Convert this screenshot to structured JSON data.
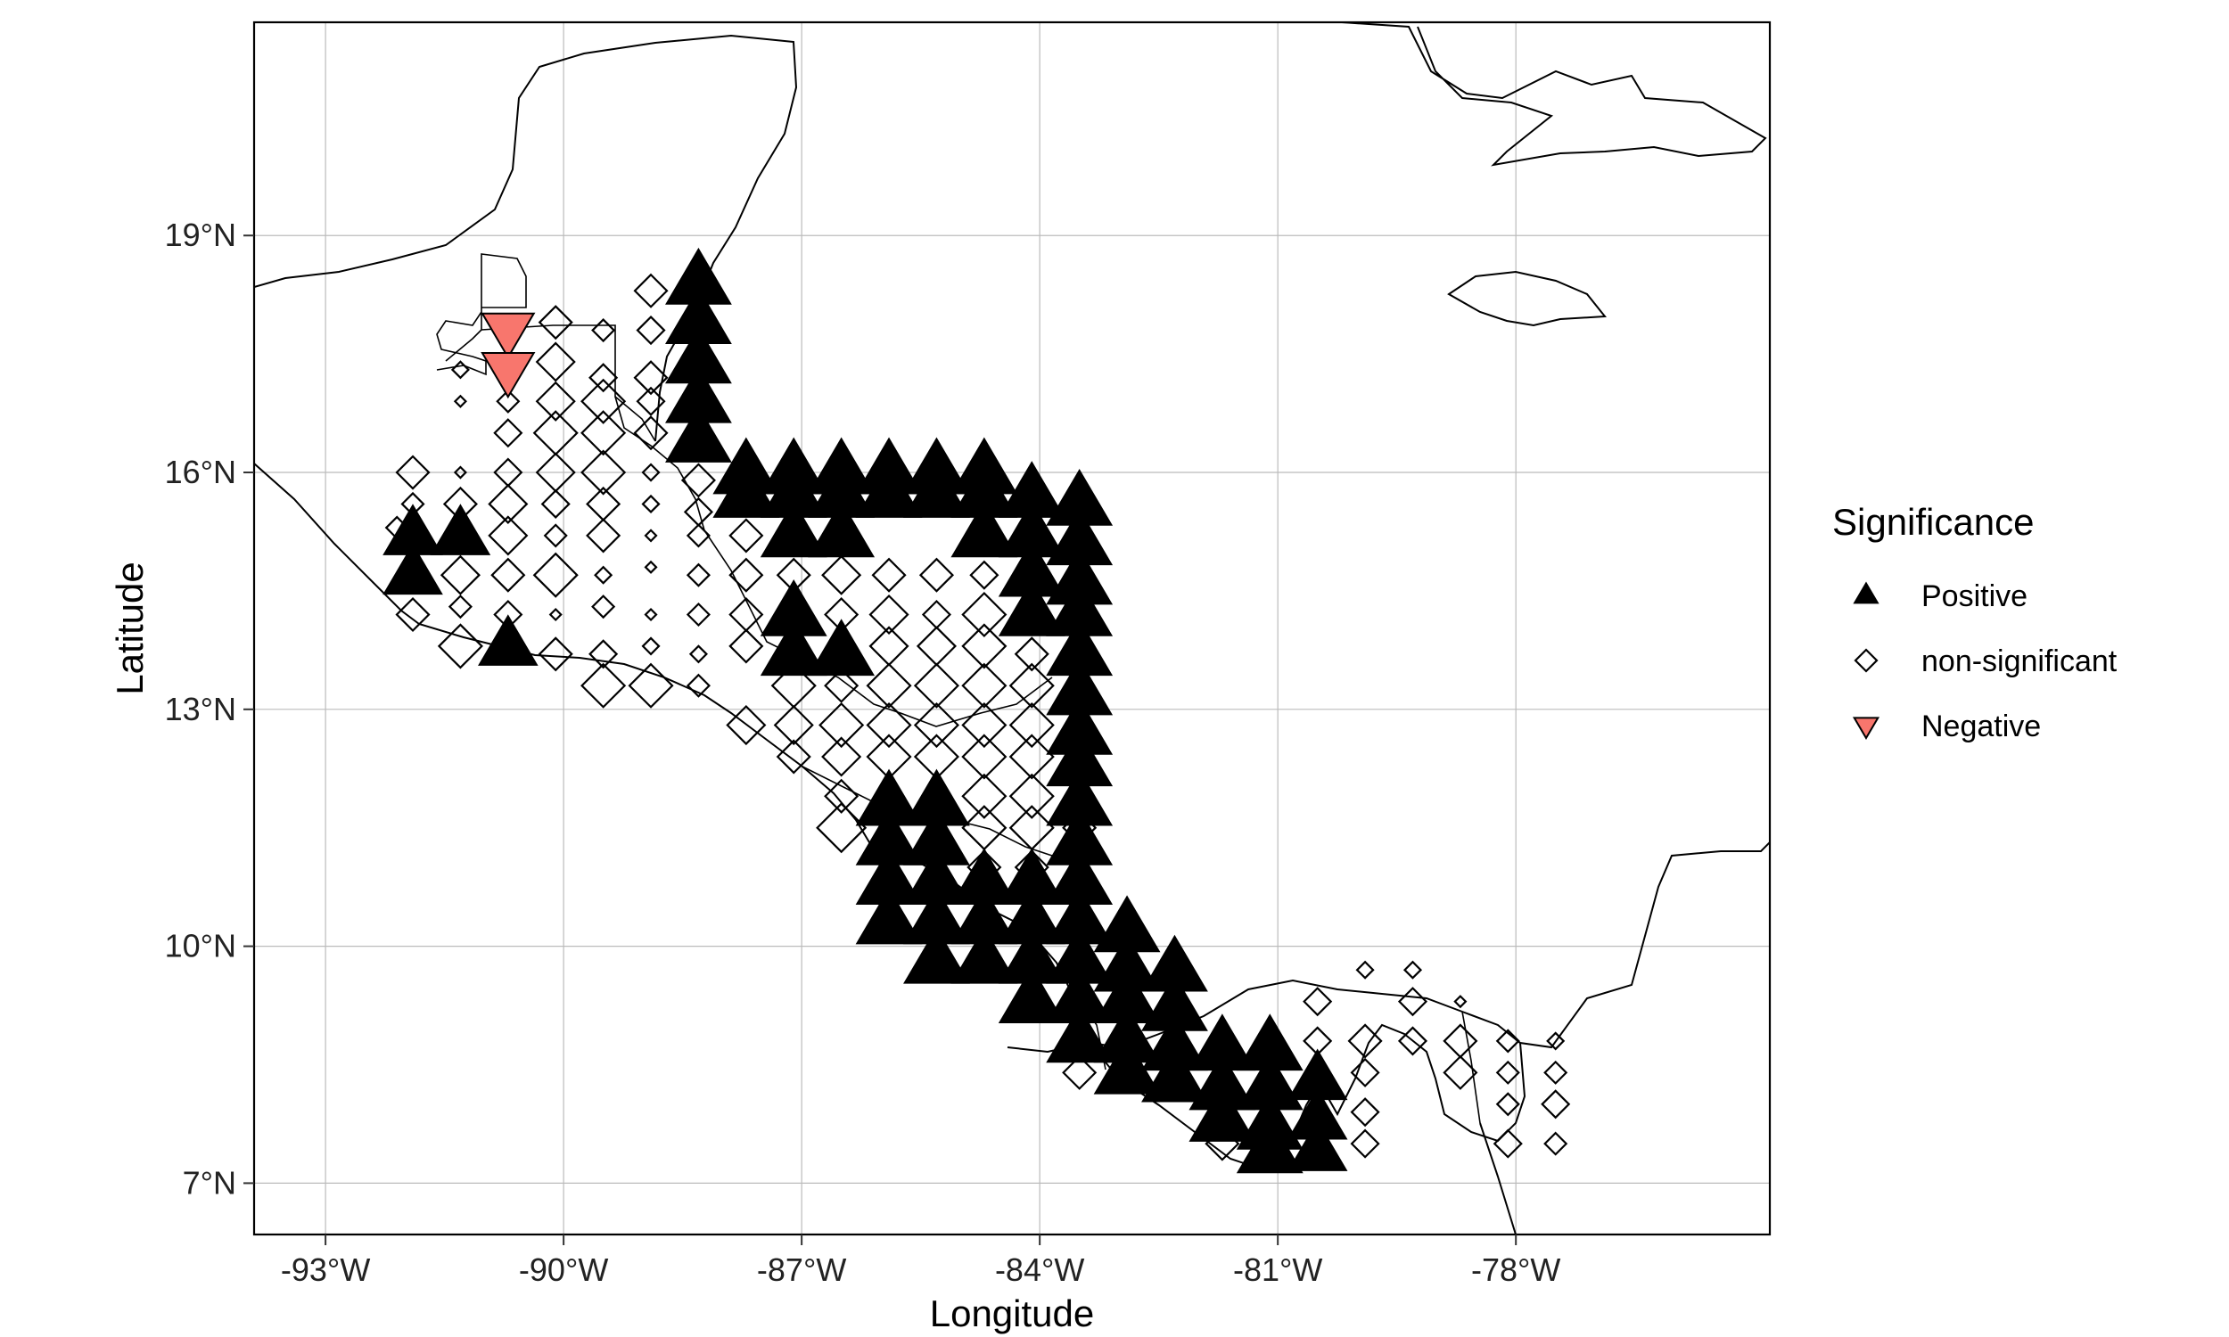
{
  "chart_data": {
    "type": "scatter",
    "xlabel": "Longitude",
    "ylabel": "Latitude",
    "xlim": [
      -93.9,
      -74.8
    ],
    "ylim": [
      6.35,
      21.7
    ],
    "grid": true,
    "x_ticks": [
      {
        "value": -93,
        "label": "-93°W"
      },
      {
        "value": -90,
        "label": "-90°W"
      },
      {
        "value": -87,
        "label": "-87°W"
      },
      {
        "value": -84,
        "label": "-84°W"
      },
      {
        "value": -81,
        "label": "-81°W"
      },
      {
        "value": -78,
        "label": "-78°W"
      }
    ],
    "y_ticks": [
      {
        "value": 7,
        "label": "7°N"
      },
      {
        "value": 10,
        "label": "10°N"
      },
      {
        "value": 13,
        "label": "13°N"
      },
      {
        "value": 16,
        "label": "16°N"
      },
      {
        "value": 19,
        "label": "19°N"
      }
    ],
    "legend": {
      "title": "Significance",
      "position": "right",
      "entries": [
        {
          "key": "positive",
          "label": "Positive",
          "shape": "triangle-up",
          "fill": "#000000"
        },
        {
          "key": "non_significant",
          "label": "non-significant",
          "shape": "diamond-open",
          "fill": "none"
        },
        {
          "key": "negative",
          "label": "Negative",
          "shape": "triangle-down",
          "fill": "#f8766d"
        }
      ]
    },
    "colors": {
      "positive": "#000000",
      "negative": "#f8766d",
      "non_significant_stroke": "#000000",
      "coastline": "#000000",
      "grid": "#bbbbbb"
    },
    "series": [
      {
        "key": "positive",
        "points": [
          [
            -88.3,
            18.4,
            1
          ],
          [
            -88.3,
            17.9,
            1
          ],
          [
            -88.3,
            17.4,
            1
          ],
          [
            -88.3,
            16.9,
            1
          ],
          [
            -88.3,
            16.4,
            1
          ],
          [
            -87.7,
            16.0,
            1
          ],
          [
            -87.7,
            15.7,
            1
          ],
          [
            -87.1,
            16.0,
            1
          ],
          [
            -87.1,
            15.7,
            1
          ],
          [
            -87.1,
            15.2,
            1
          ],
          [
            -86.5,
            16.0,
            1
          ],
          [
            -86.5,
            15.7,
            1
          ],
          [
            -86.5,
            15.2,
            1
          ],
          [
            -85.9,
            16.0,
            1
          ],
          [
            -85.9,
            15.7,
            1
          ],
          [
            -85.3,
            16.0,
            1
          ],
          [
            -85.3,
            15.7,
            1
          ],
          [
            -84.7,
            16.0,
            1
          ],
          [
            -84.7,
            15.7,
            1
          ],
          [
            -84.7,
            15.2,
            1
          ],
          [
            -84.1,
            15.7,
            1
          ],
          [
            -84.1,
            15.2,
            1
          ],
          [
            -84.1,
            14.7,
            1
          ],
          [
            -84.1,
            14.2,
            1
          ],
          [
            -83.5,
            15.6,
            1
          ],
          [
            -83.5,
            15.1,
            1
          ],
          [
            -83.5,
            14.6,
            1
          ],
          [
            -83.5,
            14.2,
            1
          ],
          [
            -83.5,
            13.7,
            1
          ],
          [
            -83.5,
            13.2,
            1
          ],
          [
            -83.5,
            12.7,
            1
          ],
          [
            -83.5,
            12.3,
            1
          ],
          [
            -83.5,
            11.8,
            1
          ],
          [
            -87.1,
            14.2,
            1
          ],
          [
            -87.1,
            13.7,
            1
          ],
          [
            -86.5,
            13.7,
            1
          ],
          [
            -91.9,
            15.2,
            0.9
          ],
          [
            -91.9,
            14.7,
            0.9
          ],
          [
            -91.3,
            15.2,
            0.9
          ],
          [
            -90.7,
            13.8,
            0.9
          ],
          [
            -85.9,
            11.8,
            1
          ],
          [
            -85.9,
            11.3,
            1
          ],
          [
            -85.9,
            10.8,
            1
          ],
          [
            -85.9,
            10.3,
            1
          ],
          [
            -85.3,
            11.8,
            1
          ],
          [
            -85.3,
            11.3,
            1
          ],
          [
            -85.3,
            10.8,
            1
          ],
          [
            -85.3,
            10.3,
            1
          ],
          [
            -85.3,
            9.8,
            1
          ],
          [
            -84.7,
            10.8,
            1
          ],
          [
            -84.7,
            10.3,
            1
          ],
          [
            -84.7,
            9.8,
            1
          ],
          [
            -84.1,
            10.8,
            1
          ],
          [
            -84.1,
            10.3,
            1
          ],
          [
            -84.1,
            9.8,
            1
          ],
          [
            -84.1,
            9.3,
            1
          ],
          [
            -83.5,
            11.3,
            1
          ],
          [
            -83.5,
            10.8,
            1
          ],
          [
            -83.5,
            10.3,
            1
          ],
          [
            -83.5,
            9.8,
            1
          ],
          [
            -83.5,
            9.3,
            1
          ],
          [
            -83.5,
            8.8,
            1
          ],
          [
            -82.9,
            10.2,
            1
          ],
          [
            -82.9,
            9.7,
            1
          ],
          [
            -82.9,
            9.3,
            1
          ],
          [
            -82.9,
            8.8,
            1
          ],
          [
            -82.9,
            8.4,
            1
          ],
          [
            -82.3,
            9.7,
            1
          ],
          [
            -82.3,
            9.2,
            1
          ],
          [
            -82.3,
            8.7,
            1
          ],
          [
            -82.3,
            8.3,
            1
          ],
          [
            -81.7,
            8.7,
            1
          ],
          [
            -81.7,
            8.2,
            1
          ],
          [
            -81.7,
            7.8,
            1
          ],
          [
            -81.1,
            8.7,
            1
          ],
          [
            -81.1,
            8.2,
            1
          ],
          [
            -81.1,
            7.7,
            1
          ],
          [
            -81.1,
            7.4,
            1
          ],
          [
            -80.5,
            8.3,
            0.9
          ],
          [
            -80.5,
            7.8,
            0.9
          ],
          [
            -80.5,
            7.4,
            0.9
          ]
        ]
      },
      {
        "key": "negative",
        "points": [
          [
            -90.7,
            17.8,
            0.8
          ],
          [
            -90.7,
            17.3,
            0.8
          ]
        ]
      },
      {
        "key": "non_significant",
        "points": [
          [
            -88.9,
            18.3,
            0.6
          ],
          [
            -90.1,
            17.9,
            0.6
          ],
          [
            -89.5,
            17.8,
            0.4
          ],
          [
            -88.9,
            17.8,
            0.5
          ],
          [
            -91.3,
            17.3,
            0.3
          ],
          [
            -90.7,
            17.3,
            0.4
          ],
          [
            -90.1,
            17.4,
            0.7
          ],
          [
            -89.5,
            17.2,
            0.5
          ],
          [
            -88.9,
            17.2,
            0.6
          ],
          [
            -91.3,
            16.9,
            0.2
          ],
          [
            -90.7,
            16.9,
            0.4
          ],
          [
            -90.1,
            16.9,
            0.7
          ],
          [
            -89.5,
            16.9,
            0.8
          ],
          [
            -88.9,
            16.9,
            0.5
          ],
          [
            -90.7,
            16.5,
            0.5
          ],
          [
            -90.1,
            16.5,
            0.8
          ],
          [
            -89.5,
            16.5,
            0.8
          ],
          [
            -88.9,
            16.5,
            0.6
          ],
          [
            -91.9,
            16.0,
            0.6
          ],
          [
            -91.3,
            16.0,
            0.2
          ],
          [
            -90.7,
            16.0,
            0.5
          ],
          [
            -90.1,
            16.0,
            0.7
          ],
          [
            -89.5,
            16.0,
            0.8
          ],
          [
            -88.9,
            16.0,
            0.3
          ],
          [
            -88.3,
            15.9,
            0.6
          ],
          [
            -91.9,
            15.6,
            0.4
          ],
          [
            -91.3,
            15.6,
            0.6
          ],
          [
            -90.7,
            15.6,
            0.7
          ],
          [
            -90.1,
            15.6,
            0.5
          ],
          [
            -89.5,
            15.6,
            0.6
          ],
          [
            -88.9,
            15.6,
            0.3
          ],
          [
            -88.3,
            15.5,
            0.5
          ],
          [
            -92.1,
            15.3,
            0.4
          ],
          [
            -91.3,
            15.2,
            0.4
          ],
          [
            -90.7,
            15.2,
            0.7
          ],
          [
            -90.1,
            15.2,
            0.4
          ],
          [
            -89.5,
            15.2,
            0.6
          ],
          [
            -88.9,
            15.2,
            0.2
          ],
          [
            -88.3,
            15.2,
            0.4
          ],
          [
            -87.7,
            15.2,
            0.6
          ],
          [
            -91.3,
            14.7,
            0.7
          ],
          [
            -90.7,
            14.7,
            0.6
          ],
          [
            -90.1,
            14.7,
            0.8
          ],
          [
            -89.5,
            14.7,
            0.3
          ],
          [
            -88.9,
            14.8,
            0.2
          ],
          [
            -88.3,
            14.7,
            0.4
          ],
          [
            -87.7,
            14.7,
            0.6
          ],
          [
            -87.1,
            14.7,
            0.6
          ],
          [
            -86.5,
            14.7,
            0.7
          ],
          [
            -85.9,
            14.7,
            0.6
          ],
          [
            -85.3,
            14.7,
            0.6
          ],
          [
            -84.7,
            14.7,
            0.5
          ],
          [
            -91.9,
            14.2,
            0.6
          ],
          [
            -91.3,
            14.3,
            0.4
          ],
          [
            -90.7,
            14.2,
            0.5
          ],
          [
            -90.1,
            14.2,
            0.2
          ],
          [
            -89.5,
            14.3,
            0.4
          ],
          [
            -88.9,
            14.2,
            0.2
          ],
          [
            -88.3,
            14.2,
            0.4
          ],
          [
            -87.7,
            14.2,
            0.6
          ],
          [
            -86.5,
            14.2,
            0.6
          ],
          [
            -85.9,
            14.2,
            0.7
          ],
          [
            -85.3,
            14.2,
            0.5
          ],
          [
            -84.7,
            14.2,
            0.8
          ],
          [
            -91.3,
            13.8,
            0.8
          ],
          [
            -90.1,
            13.7,
            0.6
          ],
          [
            -89.5,
            13.7,
            0.5
          ],
          [
            -88.9,
            13.8,
            0.3
          ],
          [
            -88.3,
            13.7,
            0.3
          ],
          [
            -87.7,
            13.8,
            0.6
          ],
          [
            -85.9,
            13.8,
            0.7
          ],
          [
            -85.3,
            13.8,
            0.7
          ],
          [
            -84.7,
            13.8,
            0.8
          ],
          [
            -84.1,
            13.7,
            0.6
          ],
          [
            -89.5,
            13.3,
            0.8
          ],
          [
            -88.9,
            13.3,
            0.8
          ],
          [
            -88.3,
            13.3,
            0.4
          ],
          [
            -87.1,
            13.3,
            0.8
          ],
          [
            -86.5,
            13.3,
            0.6
          ],
          [
            -85.9,
            13.3,
            0.8
          ],
          [
            -85.3,
            13.3,
            0.8
          ],
          [
            -84.7,
            13.3,
            0.8
          ],
          [
            -84.1,
            13.3,
            0.8
          ],
          [
            -87.7,
            12.8,
            0.7
          ],
          [
            -87.1,
            12.8,
            0.7
          ],
          [
            -86.5,
            12.8,
            0.8
          ],
          [
            -85.9,
            12.8,
            0.8
          ],
          [
            -85.3,
            12.8,
            0.8
          ],
          [
            -84.7,
            12.8,
            0.8
          ],
          [
            -84.1,
            12.8,
            0.8
          ],
          [
            -87.1,
            12.4,
            0.6
          ],
          [
            -86.5,
            12.4,
            0.7
          ],
          [
            -85.9,
            12.4,
            0.8
          ],
          [
            -85.3,
            12.4,
            0.8
          ],
          [
            -84.7,
            12.4,
            0.8
          ],
          [
            -84.1,
            12.4,
            0.8
          ],
          [
            -86.5,
            11.9,
            0.6
          ],
          [
            -84.7,
            11.9,
            0.8
          ],
          [
            -84.1,
            11.9,
            0.8
          ],
          [
            -86.5,
            11.5,
            0.9
          ],
          [
            -84.7,
            11.5,
            0.8
          ],
          [
            -84.1,
            11.5,
            0.8
          ],
          [
            -83.5,
            11.5,
            0.6
          ],
          [
            -84.7,
            11.0,
            0.6
          ],
          [
            -84.1,
            11.0,
            0.6
          ],
          [
            -83.5,
            8.4,
            0.6
          ],
          [
            -80.5,
            9.3,
            0.5
          ],
          [
            -79.9,
            9.7,
            0.3
          ],
          [
            -79.3,
            9.7,
            0.3
          ],
          [
            -80.5,
            8.8,
            0.5
          ],
          [
            -79.9,
            8.8,
            0.6
          ],
          [
            -79.3,
            9.3,
            0.5
          ],
          [
            -78.7,
            9.3,
            0.2
          ],
          [
            -79.9,
            8.4,
            0.5
          ],
          [
            -79.3,
            8.8,
            0.5
          ],
          [
            -78.7,
            8.8,
            0.6
          ],
          [
            -78.1,
            8.8,
            0.4
          ],
          [
            -77.5,
            8.8,
            0.3
          ],
          [
            -79.9,
            7.9,
            0.5
          ],
          [
            -78.7,
            8.4,
            0.6
          ],
          [
            -78.1,
            8.4,
            0.4
          ],
          [
            -77.5,
            8.4,
            0.4
          ],
          [
            -79.9,
            7.5,
            0.5
          ],
          [
            -78.1,
            8.0,
            0.4
          ],
          [
            -77.5,
            8.0,
            0.5
          ],
          [
            -81.7,
            7.5,
            0.6
          ],
          [
            -78.1,
            7.5,
            0.5
          ],
          [
            -77.5,
            7.5,
            0.4
          ]
        ]
      }
    ]
  }
}
